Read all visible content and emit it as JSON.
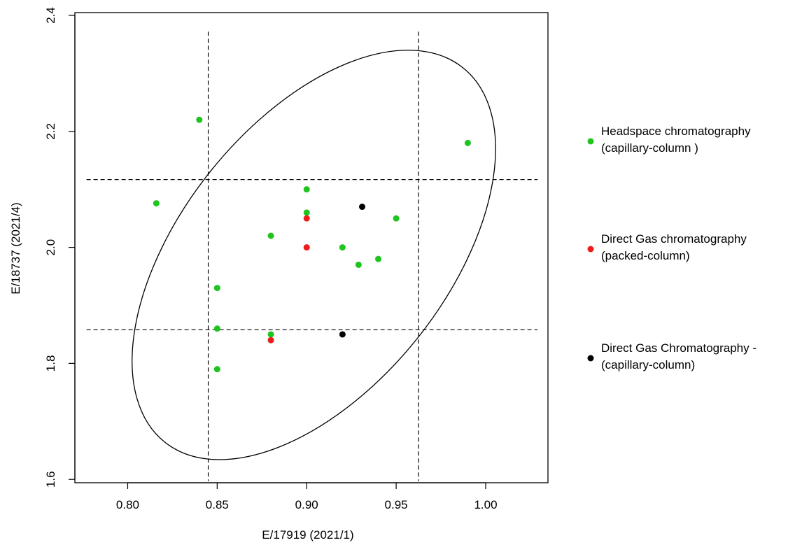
{
  "chart_data": {
    "type": "scatter",
    "xlabel": "E/17919 (2021/1)",
    "ylabel": "E/18737 (2021/4)",
    "xlim": [
      0.7705,
      1.0348
    ],
    "ylim": [
      1.5942,
      2.4048
    ],
    "x_ticks": [
      "0.80",
      "0.85",
      "0.90",
      "0.95",
      "1.00"
    ],
    "y_ticks": [
      "1.6",
      "1.8",
      "2.0",
      "2.2",
      "2.4"
    ],
    "grid": false,
    "legend_position": "right",
    "series": [
      {
        "name": "Headspace chromatography (capillary-column )",
        "legend_lines": [
          "Headspace chromatography",
          "(capillary-column )"
        ],
        "color": "#1fc41f",
        "points": [
          {
            "x": 0.84,
            "y": 2.22
          },
          {
            "x": 0.816,
            "y": 2.076
          },
          {
            "x": 0.99,
            "y": 2.18
          },
          {
            "x": 0.9,
            "y": 2.1
          },
          {
            "x": 0.9,
            "y": 2.06
          },
          {
            "x": 0.95,
            "y": 2.05
          },
          {
            "x": 0.88,
            "y": 2.02
          },
          {
            "x": 0.92,
            "y": 2.0
          },
          {
            "x": 0.94,
            "y": 1.98
          },
          {
            "x": 0.929,
            "y": 1.97
          },
          {
            "x": 0.85,
            "y": 1.93
          },
          {
            "x": 0.85,
            "y": 1.86
          },
          {
            "x": 0.88,
            "y": 1.85
          },
          {
            "x": 0.85,
            "y": 1.79
          }
        ]
      },
      {
        "name": "Direct Gas chromatography (packed-column)",
        "legend_lines": [
          "Direct Gas chromatography",
          "(packed-column)"
        ],
        "color": "#ee1b1b",
        "points": [
          {
            "x": 0.9,
            "y": 2.05
          },
          {
            "x": 0.9,
            "y": 2.0
          },
          {
            "x": 0.88,
            "y": 1.84
          }
        ]
      },
      {
        "name": "Direct Gas Chromatography - (capillary-column)",
        "legend_lines": [
          "Direct Gas Chromatography -",
          "(capillary-column)"
        ],
        "color": "#000000",
        "points": [
          {
            "x": 0.931,
            "y": 2.07
          },
          {
            "x": 0.92,
            "y": 1.85
          }
        ]
      }
    ],
    "reference_lines": {
      "vertical_x": [
        0.845,
        0.9625
      ],
      "horizontal_y": [
        2.117,
        1.858
      ],
      "style": "dashed"
    },
    "ellipse": {
      "center": [
        0.904,
        1.987
      ],
      "semi_axes": [
        0.13,
        0.39
      ],
      "shape": "tilted confidence ellipse"
    }
  }
}
